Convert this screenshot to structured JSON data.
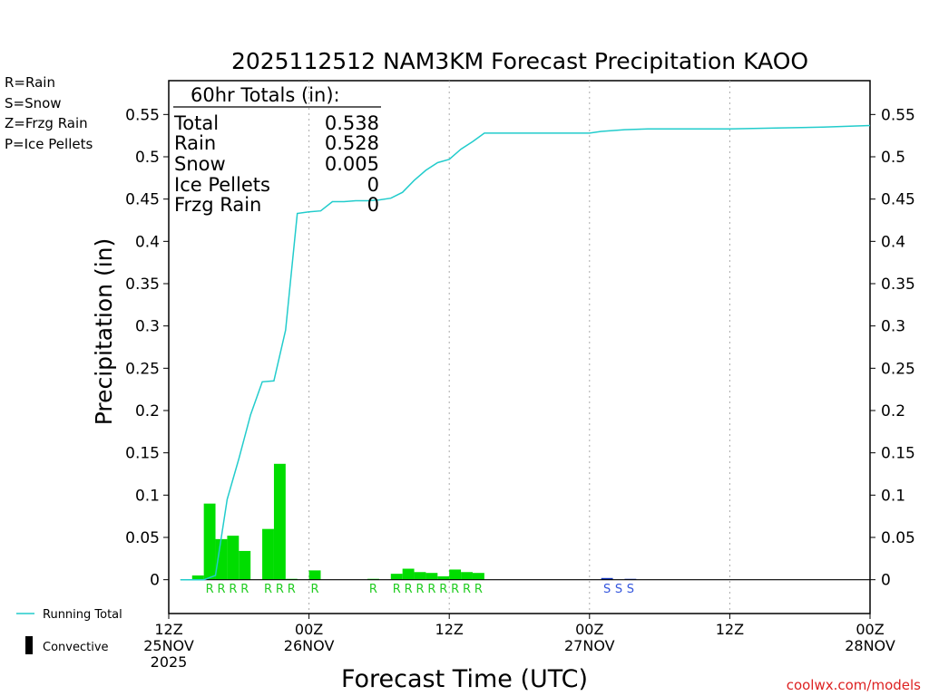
{
  "chart_data": {
    "type": "bar",
    "title": "2025112512 NAM3KM Forecast Precipitation KAOO",
    "xlabel": "Forecast Time (UTC)",
    "ylabel": "Precipitation (in)",
    "ylim": [
      -0.04,
      0.59
    ],
    "xlim_hours": [
      0,
      60
    ],
    "y_ticks": [
      {
        "value": 0.55,
        "label": "0.55"
      },
      {
        "value": 0.5,
        "label": "0.5"
      },
      {
        "value": 0.45,
        "label": "0.45"
      },
      {
        "value": 0.4,
        "label": "0.4"
      },
      {
        "value": 0.35,
        "label": "0.35"
      },
      {
        "value": 0.3,
        "label": "0.3"
      },
      {
        "value": 0.25,
        "label": "0.25"
      },
      {
        "value": 0.2,
        "label": "0.2"
      },
      {
        "value": 0.15,
        "label": "0.15"
      },
      {
        "value": 0.1,
        "label": "0.1"
      },
      {
        "value": 0.05,
        "label": "0.05"
      },
      {
        "value": 0,
        "label": "0"
      }
    ],
    "x_ticks": [
      {
        "hour": 0,
        "line1": "12Z",
        "line2": "25NOV",
        "line3": "2025"
      },
      {
        "hour": 12,
        "line1": "00Z",
        "line2": "26NOV",
        "line3": ""
      },
      {
        "hour": 24,
        "line1": "12Z",
        "line2": "",
        "line3": ""
      },
      {
        "hour": 36,
        "line1": "00Z",
        "line2": "27NOV",
        "line3": ""
      },
      {
        "hour": 48,
        "line1": "12Z",
        "line2": "",
        "line3": ""
      },
      {
        "hour": 60,
        "line1": "00Z",
        "line2": "28NOV",
        "line3": ""
      }
    ],
    "grid_hours": [
      12,
      24,
      36,
      48
    ],
    "bar_width_hours": 1,
    "bars": [
      {
        "hour": 3,
        "value": 0.005,
        "type": "rain"
      },
      {
        "hour": 4,
        "value": 0.09,
        "type": "rain"
      },
      {
        "hour": 5,
        "value": 0.048,
        "type": "rain"
      },
      {
        "hour": 6,
        "value": 0.052,
        "type": "rain"
      },
      {
        "hour": 7,
        "value": 0.034,
        "type": "rain"
      },
      {
        "hour": 9,
        "value": 0.06,
        "type": "rain"
      },
      {
        "hour": 10,
        "value": 0.137,
        "type": "rain"
      },
      {
        "hour": 11,
        "value": 0.001,
        "type": "rain"
      },
      {
        "hour": 13,
        "value": 0.011,
        "type": "rain"
      },
      {
        "hour": 18,
        "value": 0.001,
        "type": "rain"
      },
      {
        "hour": 20,
        "value": 0.007,
        "type": "rain"
      },
      {
        "hour": 21,
        "value": 0.013,
        "type": "rain"
      },
      {
        "hour": 22,
        "value": 0.009,
        "type": "rain"
      },
      {
        "hour": 23,
        "value": 0.008,
        "type": "rain"
      },
      {
        "hour": 24,
        "value": 0.004,
        "type": "rain"
      },
      {
        "hour": 25,
        "value": 0.012,
        "type": "rain"
      },
      {
        "hour": 26,
        "value": 0.009,
        "type": "rain"
      },
      {
        "hour": 27,
        "value": 0.008,
        "type": "rain"
      },
      {
        "hour": 38,
        "value": 0.002,
        "type": "snow"
      },
      {
        "hour": 40,
        "value": 0.001,
        "type": "snow"
      }
    ],
    "running_total": [
      [
        1,
        0.0
      ],
      [
        3,
        0.0
      ],
      [
        4,
        0.005
      ],
      [
        5,
        0.095
      ],
      [
        6,
        0.143
      ],
      [
        7,
        0.195
      ],
      [
        8,
        0.234
      ],
      [
        9,
        0.235
      ],
      [
        10,
        0.295
      ],
      [
        11,
        0.433
      ],
      [
        12,
        0.435
      ],
      [
        13,
        0.436
      ],
      [
        14,
        0.447
      ],
      [
        15,
        0.447
      ],
      [
        16,
        0.448
      ],
      [
        17,
        0.448
      ],
      [
        18,
        0.449
      ],
      [
        19,
        0.451
      ],
      [
        20,
        0.458
      ],
      [
        21,
        0.472
      ],
      [
        22,
        0.484
      ],
      [
        23,
        0.493
      ],
      [
        24,
        0.497
      ],
      [
        25,
        0.509
      ],
      [
        26,
        0.518
      ],
      [
        27,
        0.528
      ],
      [
        28,
        0.528
      ],
      [
        30,
        0.528
      ],
      [
        36,
        0.528
      ],
      [
        37,
        0.53
      ],
      [
        39,
        0.532
      ],
      [
        41,
        0.533
      ],
      [
        44,
        0.533
      ],
      [
        48,
        0.533
      ],
      [
        52,
        0.534
      ],
      [
        56,
        0.535
      ],
      [
        60,
        0.537
      ]
    ],
    "precip_markers": [
      {
        "hour": 4,
        "letter": "R",
        "type": "rain"
      },
      {
        "hour": 5,
        "letter": "R",
        "type": "rain"
      },
      {
        "hour": 6,
        "letter": "R",
        "type": "rain"
      },
      {
        "hour": 7,
        "letter": "R",
        "type": "rain"
      },
      {
        "hour": 9,
        "letter": "R",
        "type": "rain"
      },
      {
        "hour": 10,
        "letter": "R",
        "type": "rain"
      },
      {
        "hour": 11,
        "letter": "R",
        "type": "rain"
      },
      {
        "hour": 13,
        "letter": "R",
        "type": "rain"
      },
      {
        "hour": 18,
        "letter": "R",
        "type": "rain"
      },
      {
        "hour": 20,
        "letter": "R",
        "type": "rain"
      },
      {
        "hour": 21,
        "letter": "R",
        "type": "rain"
      },
      {
        "hour": 22,
        "letter": "R",
        "type": "rain"
      },
      {
        "hour": 23,
        "letter": "R",
        "type": "rain"
      },
      {
        "hour": 24,
        "letter": "R",
        "type": "rain"
      },
      {
        "hour": 25,
        "letter": "R",
        "type": "rain"
      },
      {
        "hour": 26,
        "letter": "R",
        "type": "rain"
      },
      {
        "hour": 27,
        "letter": "R",
        "type": "rain"
      },
      {
        "hour": 38,
        "letter": "S",
        "type": "snow"
      },
      {
        "hour": 39,
        "letter": "S",
        "type": "snow"
      },
      {
        "hour": 40,
        "letter": "S",
        "type": "snow"
      }
    ],
    "totals_box": {
      "title": "60hr Totals (in):",
      "rows": [
        {
          "label": "Total",
          "value": "0.538"
        },
        {
          "label": "Rain",
          "value": "0.528"
        },
        {
          "label": "Snow",
          "value": "0.005"
        },
        {
          "label": "Ice Pellets",
          "value": "0"
        },
        {
          "label": "Frzg Rain",
          "value": "0"
        }
      ]
    },
    "type_legend": [
      {
        "label": "R=Rain",
        "color": "#22cc22"
      },
      {
        "label": "S=Snow",
        "color": "#3355dd"
      },
      {
        "label": "Z=Frzg Rain",
        "color": "#ee8833"
      },
      {
        "label": "P=Ice Pellets",
        "color": "#ee1177"
      }
    ],
    "line_legend": {
      "running_total_label": "Running Total",
      "convective_label": "Convective"
    },
    "credit": "coolwx.com/models",
    "colors": {
      "rain": "#00dd00",
      "snow": "#1133bb",
      "rain_text": "#22cc22",
      "snow_text": "#3355dd",
      "running_total": "#22cccc",
      "credit": "#dd2222"
    }
  }
}
